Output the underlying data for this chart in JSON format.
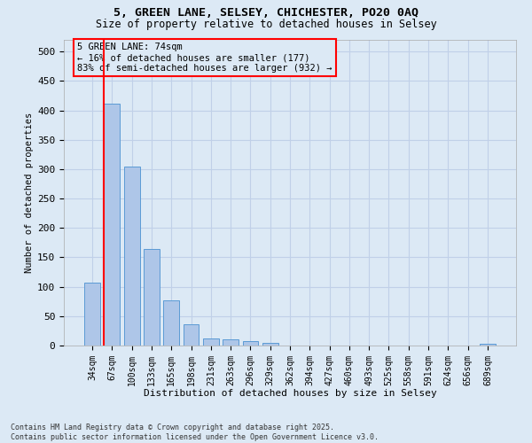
{
  "title1": "5, GREEN LANE, SELSEY, CHICHESTER, PO20 0AQ",
  "title2": "Size of property relative to detached houses in Selsey",
  "xlabel": "Distribution of detached houses by size in Selsey",
  "ylabel": "Number of detached properties",
  "categories": [
    "34sqm",
    "67sqm",
    "100sqm",
    "133sqm",
    "165sqm",
    "198sqm",
    "231sqm",
    "263sqm",
    "296sqm",
    "329sqm",
    "362sqm",
    "394sqm",
    "427sqm",
    "460sqm",
    "493sqm",
    "525sqm",
    "558sqm",
    "591sqm",
    "624sqm",
    "656sqm",
    "689sqm"
  ],
  "values": [
    107,
    411,
    305,
    165,
    77,
    36,
    12,
    11,
    8,
    5,
    0,
    0,
    0,
    0,
    0,
    0,
    0,
    0,
    0,
    0,
    3
  ],
  "bar_color": "#aec6e8",
  "bar_edge_color": "#5b9bd5",
  "vline_color": "red",
  "annotation_text": "5 GREEN LANE: 74sqm\n← 16% of detached houses are smaller (177)\n83% of semi-detached houses are larger (932) →",
  "annotation_box_color": "red",
  "ylim": [
    0,
    520
  ],
  "yticks": [
    0,
    50,
    100,
    150,
    200,
    250,
    300,
    350,
    400,
    450,
    500
  ],
  "grid_color": "#c0d0e8",
  "bg_color": "#dce9f5",
  "footer1": "Contains HM Land Registry data © Crown copyright and database right 2025.",
  "footer2": "Contains public sector information licensed under the Open Government Licence v3.0."
}
